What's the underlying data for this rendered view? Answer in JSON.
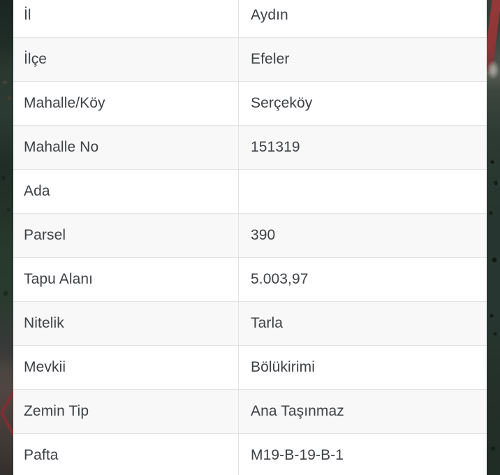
{
  "colors": {
    "map_background": "#27352e",
    "parcel_line_red": "#832d31",
    "row_background": "#ffffff",
    "row_alternate_background": "#f8f8f8",
    "row_divider": "#e3e3e3",
    "text": "#3e4145"
  },
  "parcel_info_table": {
    "rows": [
      {
        "label": "İl",
        "value": "Aydın"
      },
      {
        "label": "İlçe",
        "value": "Efeler"
      },
      {
        "label": "Mahalle/Köy",
        "value": "Serçeköy"
      },
      {
        "label": "Mahalle No",
        "value": "151319"
      },
      {
        "label": "Ada",
        "value": ""
      },
      {
        "label": "Parsel",
        "value": "390"
      },
      {
        "label": "Tapu Alanı",
        "value": "5.003,97"
      },
      {
        "label": "Nitelik",
        "value": "Tarla"
      },
      {
        "label": "Mevkii",
        "value": "Bölükirimi"
      },
      {
        "label": "Zemin Tip",
        "value": "Ana Taşınmaz"
      },
      {
        "label": "Pafta",
        "value": "M19-B-19-B-1"
      }
    ]
  }
}
